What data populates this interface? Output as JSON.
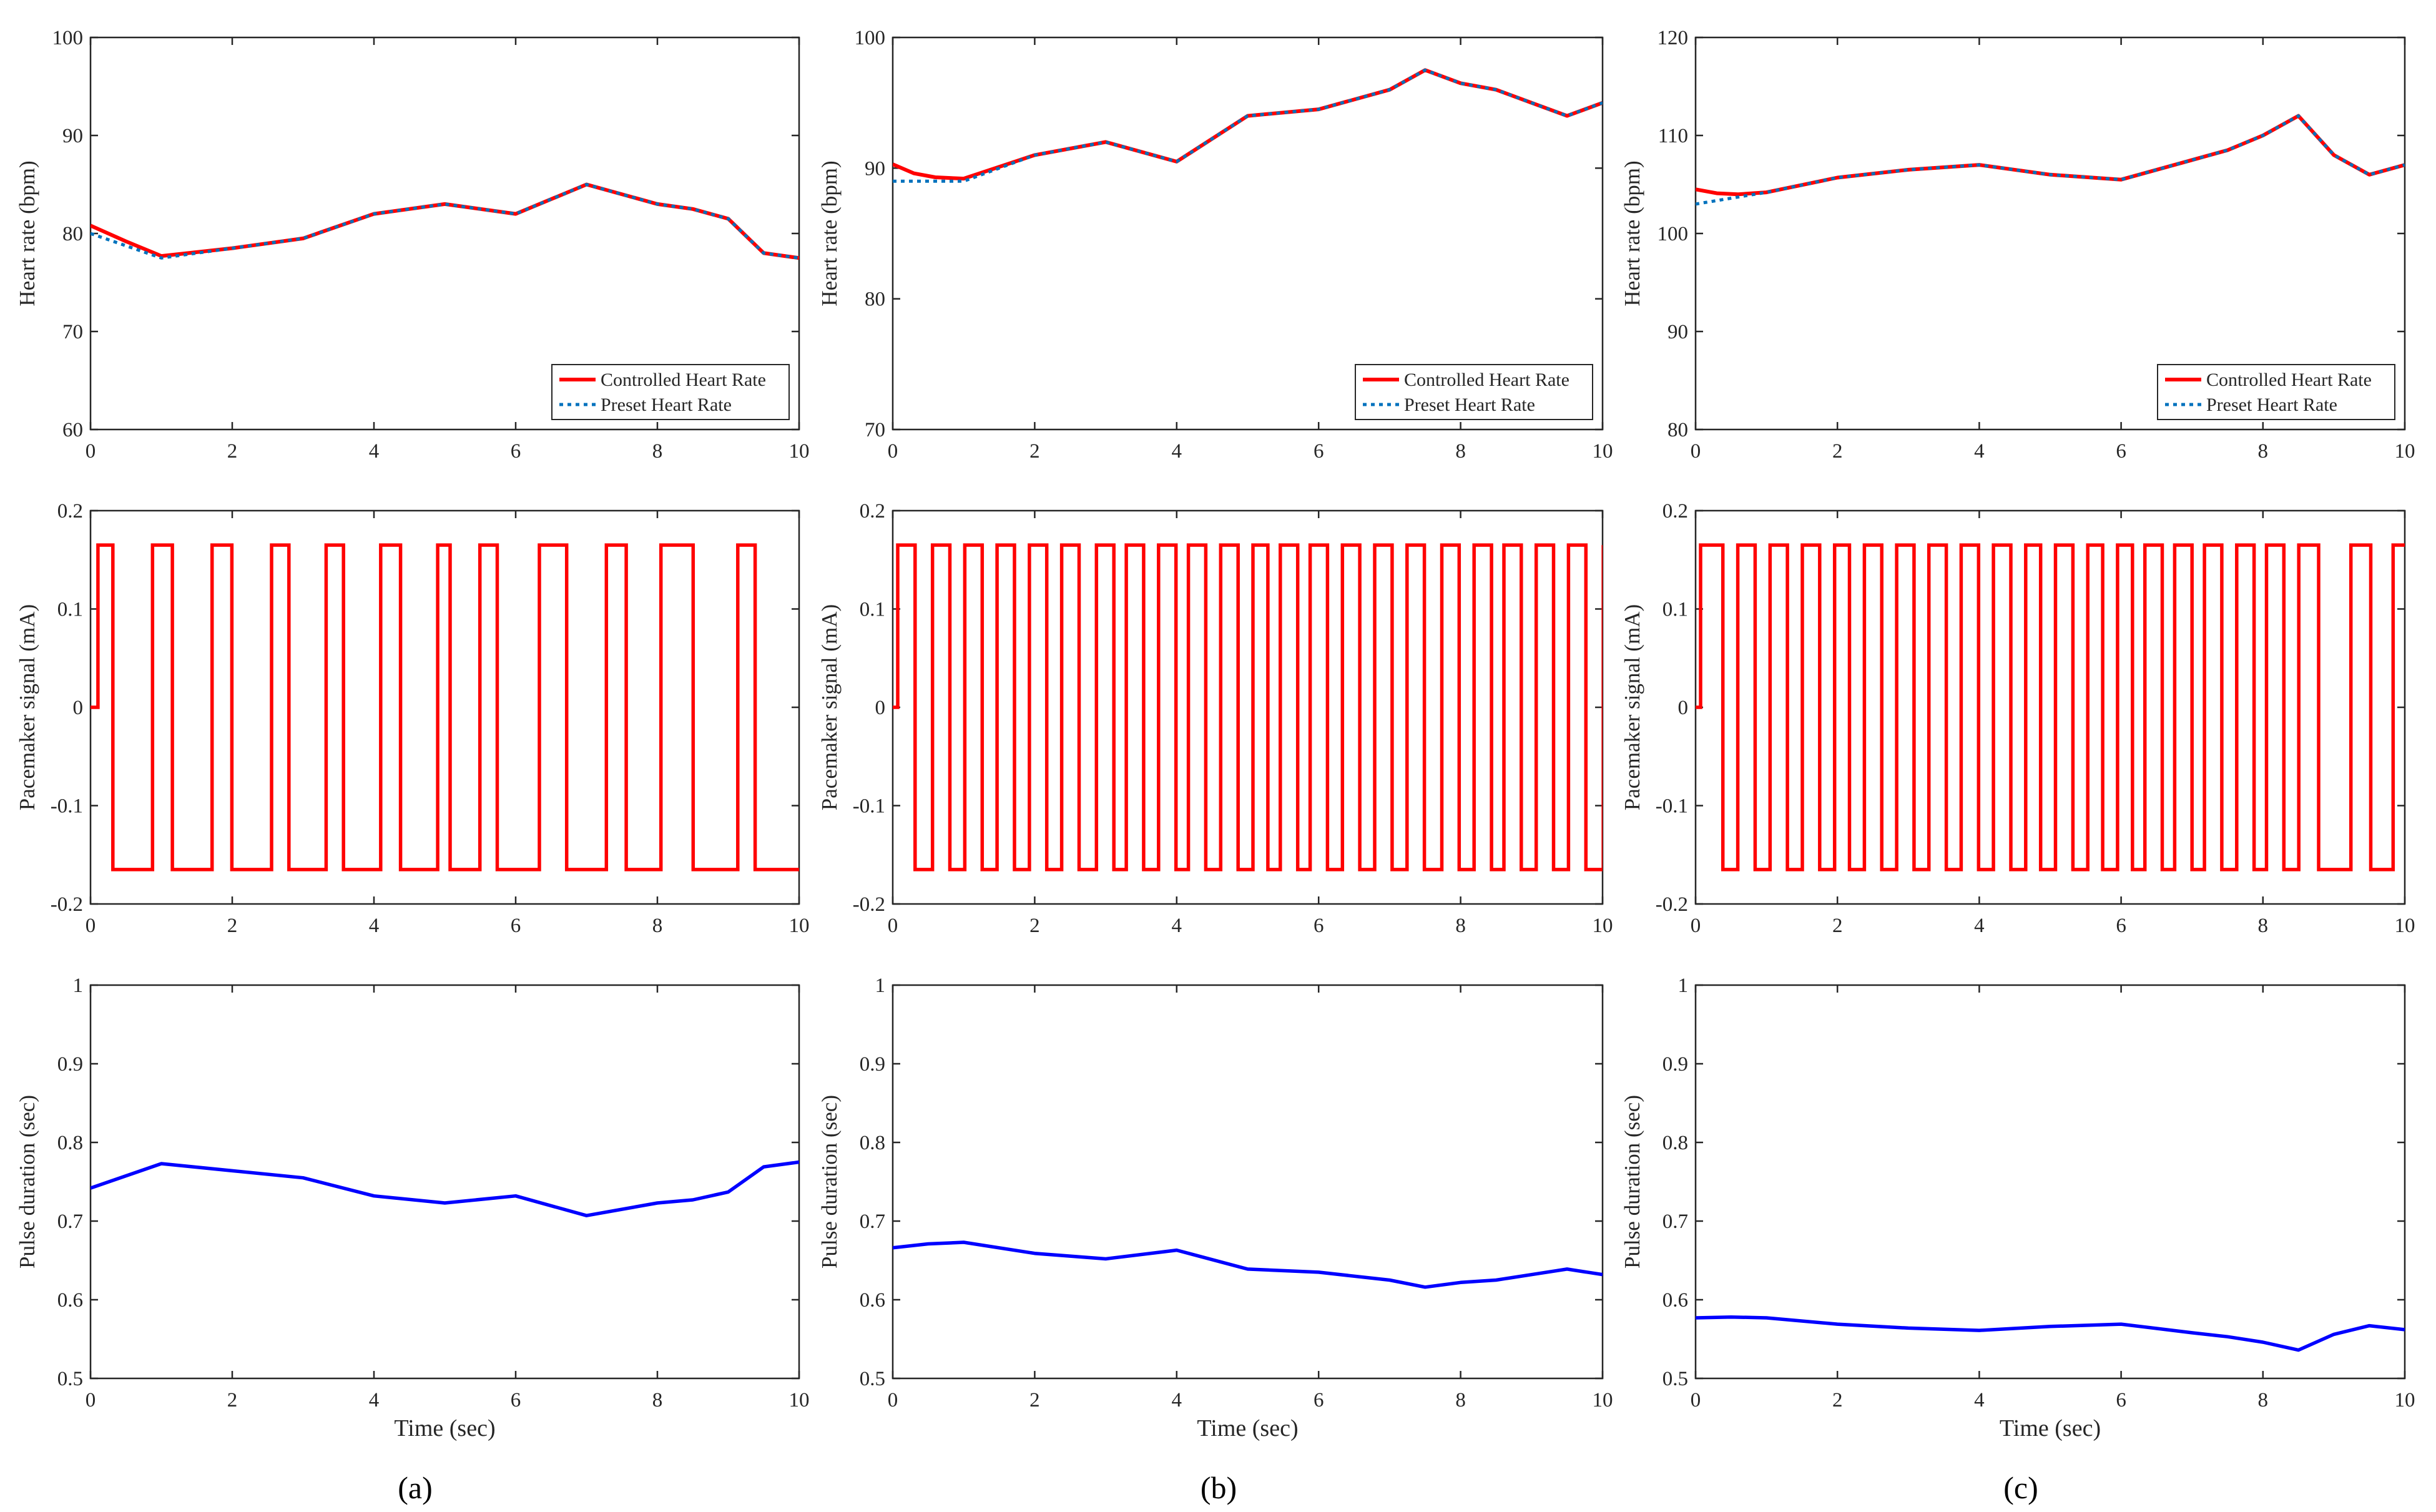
{
  "colors": {
    "controlled": "#ff0000",
    "preset": "#0072bd",
    "pacemaker": "#ff0000",
    "pulse": "#0000ff",
    "axis": "#262626"
  },
  "panel_labels": [
    "(a)",
    "(b)",
    "(c)"
  ],
  "chart_data": [
    {
      "id": "a-heart-rate",
      "type": "line",
      "panel": "(a)",
      "xlabel": "",
      "ylabel": "Heart rate (bpm)",
      "xlim": [
        0,
        10
      ],
      "ylim": [
        60,
        100
      ],
      "xticks": [
        0,
        2,
        4,
        6,
        8,
        10
      ],
      "yticks": [
        60,
        70,
        80,
        90,
        100
      ],
      "legend": {
        "position": "bottom-right",
        "entries": [
          "Controlled Heart Rate",
          "Preset Heart Rate"
        ]
      },
      "series": [
        {
          "name": "Controlled Heart Rate",
          "style": "solid",
          "x": [
            0,
            0.5,
            1,
            2,
            3,
            4,
            5,
            6,
            7,
            8,
            8.5,
            9,
            9.5,
            10
          ],
          "y": [
            80.8,
            79.2,
            77.7,
            78.5,
            79.5,
            82,
            83,
            82,
            85,
            83,
            82.5,
            81.5,
            78,
            77.5
          ]
        },
        {
          "name": "Preset Heart Rate",
          "style": "dotted",
          "x": [
            0,
            1,
            2,
            3,
            4,
            5,
            6,
            7,
            8,
            8.5,
            9,
            9.5,
            10
          ],
          "y": [
            80,
            77.5,
            78.5,
            79.5,
            82,
            83,
            82,
            85,
            83,
            82.5,
            81.5,
            78,
            77.5
          ]
        }
      ]
    },
    {
      "id": "b-heart-rate",
      "type": "line",
      "panel": "(b)",
      "xlabel": "",
      "ylabel": "Heart rate (bpm)",
      "xlim": [
        0,
        10
      ],
      "ylim": [
        70,
        100
      ],
      "xticks": [
        0,
        2,
        4,
        6,
        8,
        10
      ],
      "yticks": [
        70,
        80,
        90,
        100
      ],
      "legend": {
        "position": "bottom-right",
        "entries": [
          "Controlled Heart Rate",
          "Preset Heart Rate"
        ]
      },
      "series": [
        {
          "name": "Controlled Heart Rate",
          "style": "solid",
          "x": [
            0,
            0.3,
            0.6,
            1,
            2,
            3,
            4,
            5,
            6,
            7,
            7.5,
            8,
            8.5,
            9,
            9.5,
            10
          ],
          "y": [
            90.3,
            89.6,
            89.3,
            89.2,
            91,
            92,
            90.5,
            94,
            94.5,
            96,
            97.5,
            96.5,
            96,
            95,
            94,
            95
          ]
        },
        {
          "name": "Preset Heart Rate",
          "style": "dotted",
          "x": [
            0,
            1,
            2,
            3,
            4,
            5,
            6,
            7,
            7.5,
            8,
            8.5,
            9,
            9.5,
            10
          ],
          "y": [
            89,
            89,
            91,
            92,
            90.5,
            94,
            94.5,
            96,
            97.5,
            96.5,
            96,
            95,
            94,
            95
          ]
        }
      ]
    },
    {
      "id": "c-heart-rate",
      "type": "line",
      "panel": "(c)",
      "xlabel": "",
      "ylabel": "Heart rate (bpm)",
      "xlim": [
        0,
        10
      ],
      "ylim": [
        80,
        120
      ],
      "xticks": [
        0,
        2,
        4,
        6,
        8,
        10
      ],
      "yticks": [
        80,
        90,
        100,
        110,
        120
      ],
      "legend": {
        "position": "bottom-right",
        "entries": [
          "Controlled Heart Rate",
          "Preset Heart Rate"
        ]
      },
      "series": [
        {
          "name": "Controlled Heart Rate",
          "style": "solid",
          "x": [
            0,
            0.3,
            0.6,
            1,
            2,
            3,
            4,
            5,
            6,
            7,
            7.5,
            8,
            8.5,
            9,
            9.5,
            10
          ],
          "y": [
            104.5,
            104.1,
            104,
            104.2,
            105.7,
            106.5,
            107,
            106,
            105.5,
            107.5,
            108.5,
            110,
            112,
            108,
            106,
            107
          ]
        },
        {
          "name": "Preset Heart Rate",
          "style": "dotted",
          "x": [
            0,
            1,
            2,
            3,
            4,
            5,
            6,
            7,
            7.5,
            8,
            8.5,
            9,
            9.5,
            10
          ],
          "y": [
            103,
            104.2,
            105.7,
            106.5,
            107,
            106,
            105.5,
            107.5,
            108.5,
            110,
            112,
            108,
            106,
            107
          ]
        }
      ]
    },
    {
      "id": "a-pacemaker",
      "type": "line",
      "panel": "(a)",
      "xlabel": "",
      "ylabel": "Pacemaker signal (mA)",
      "xlim": [
        0,
        10
      ],
      "ylim": [
        -0.2,
        0.2
      ],
      "xticks": [
        0,
        2,
        4,
        6,
        8,
        10
      ],
      "yticks": [
        -0.2,
        -0.1,
        0,
        0.1,
        0.2
      ],
      "amplitude": 0.165,
      "transitions": [
        0.15,
        0.45,
        1.25,
        1.65,
        2.45,
        2.85,
        3.65,
        4.0,
        4.75,
        5.1,
        5.85,
        6.25,
        7.0,
        7.25,
        7.85,
        8.2,
        9.05,
        9.6,
        10.4,
        10.8,
        11.5,
        12.15,
        13.05,
        13.4
      ],
      "transition_scale": 0.7
    },
    {
      "id": "b-pacemaker",
      "type": "line",
      "panel": "(b)",
      "xlabel": "",
      "ylabel": "Pacemaker signal (mA)",
      "xlim": [
        0,
        10
      ],
      "ylim": [
        -0.2,
        0.2
      ],
      "xticks": [
        0,
        2,
        4,
        6,
        8,
        10
      ],
      "yticks": [
        -0.2,
        -0.1,
        0,
        0.1,
        0.2
      ],
      "amplitude": 0.165,
      "transitions": [
        0.1,
        0.45,
        0.8,
        1.15,
        1.45,
        1.8,
        2.1,
        2.45,
        2.75,
        3.1,
        3.4,
        3.75,
        4.1,
        4.45,
        4.7,
        5.05,
        5.35,
        5.7,
        5.95,
        6.3,
        6.6,
        6.95,
        7.25,
        7.55,
        7.8,
        8.15,
        8.4,
        8.75,
        9.05,
        9.4,
        9.7,
        10.05,
        10.35,
        10.7,
        11.05,
        11.4,
        11.7,
        12.05,
        12.3,
        12.65,
        12.95,
        13.3,
        13.6,
        13.95,
        14.3
      ],
      "transition_scale": 0.7
    },
    {
      "id": "c-pacemaker",
      "type": "line",
      "panel": "(c)",
      "xlabel": "",
      "ylabel": "Pacemaker signal (mA)",
      "xlim": [
        0,
        10
      ],
      "ylim": [
        -0.2,
        0.2
      ],
      "xticks": [
        0,
        2,
        4,
        6,
        8,
        10
      ],
      "yticks": [
        -0.2,
        -0.1,
        0,
        0.1,
        0.2
      ],
      "amplitude": 0.165,
      "transitions": [
        0.1,
        0.55,
        0.85,
        1.2,
        1.5,
        1.85,
        2.15,
        2.5,
        2.8,
        3.1,
        3.4,
        3.75,
        4.05,
        4.4,
        4.7,
        5.05,
        5.35,
        5.7,
        6.0,
        6.35,
        6.65,
        6.95,
        7.25,
        7.6,
        7.9,
        8.2,
        8.5,
        8.8,
        9.05,
        9.4,
        9.65,
        10.0,
        10.25,
        10.6,
        10.9,
        11.25,
        11.5,
        11.85,
        12.15,
        12.55,
        13.2,
        13.6,
        14.05
      ],
      "transition_scale": 0.7
    },
    {
      "id": "a-pulse",
      "type": "line",
      "panel": "(a)",
      "xlabel": "Time (sec)",
      "ylabel": "Pulse duration (sec)",
      "xlim": [
        0,
        10
      ],
      "ylim": [
        0.5,
        1
      ],
      "xticks": [
        0,
        2,
        4,
        6,
        8,
        10
      ],
      "yticks": [
        0.5,
        0.6,
        0.7,
        0.8,
        0.9,
        1
      ],
      "series": [
        {
          "name": "Pulse duration",
          "style": "solid",
          "x": [
            0,
            1,
            2,
            3,
            4,
            5,
            6,
            7,
            8,
            8.5,
            9,
            9.5,
            10
          ],
          "y": [
            0.742,
            0.773,
            0.764,
            0.755,
            0.732,
            0.723,
            0.732,
            0.707,
            0.723,
            0.727,
            0.737,
            0.769,
            0.775
          ]
        }
      ]
    },
    {
      "id": "b-pulse",
      "type": "line",
      "panel": "(b)",
      "xlabel": "Time (sec)",
      "ylabel": "Pulse duration (sec)",
      "xlim": [
        0,
        10
      ],
      "ylim": [
        0.5,
        1
      ],
      "xticks": [
        0,
        2,
        4,
        6,
        8,
        10
      ],
      "yticks": [
        0.5,
        0.6,
        0.7,
        0.8,
        0.9,
        1
      ],
      "series": [
        {
          "name": "Pulse duration",
          "style": "solid",
          "x": [
            0,
            0.5,
            1,
            2,
            3,
            4,
            5,
            6,
            7,
            7.5,
            8,
            8.5,
            9,
            9.5,
            10
          ],
          "y": [
            0.666,
            0.671,
            0.673,
            0.659,
            0.652,
            0.663,
            0.639,
            0.635,
            0.625,
            0.616,
            0.622,
            0.625,
            0.632,
            0.639,
            0.632
          ]
        }
      ]
    },
    {
      "id": "c-pulse",
      "type": "line",
      "panel": "(c)",
      "xlabel": "Time (sec)",
      "ylabel": "Pulse duration (sec)",
      "xlim": [
        0,
        10
      ],
      "ylim": [
        0.5,
        1
      ],
      "xticks": [
        0,
        2,
        4,
        6,
        8,
        10
      ],
      "yticks": [
        0.5,
        0.6,
        0.7,
        0.8,
        0.9,
        1
      ],
      "series": [
        {
          "name": "Pulse duration",
          "style": "solid",
          "x": [
            0,
            0.5,
            1,
            2,
            3,
            4,
            5,
            6,
            7,
            7.5,
            8,
            8.5,
            9,
            9.5,
            10
          ],
          "y": [
            0.577,
            0.578,
            0.577,
            0.569,
            0.564,
            0.561,
            0.566,
            0.569,
            0.558,
            0.553,
            0.546,
            0.536,
            0.556,
            0.567,
            0.562
          ]
        }
      ]
    }
  ]
}
